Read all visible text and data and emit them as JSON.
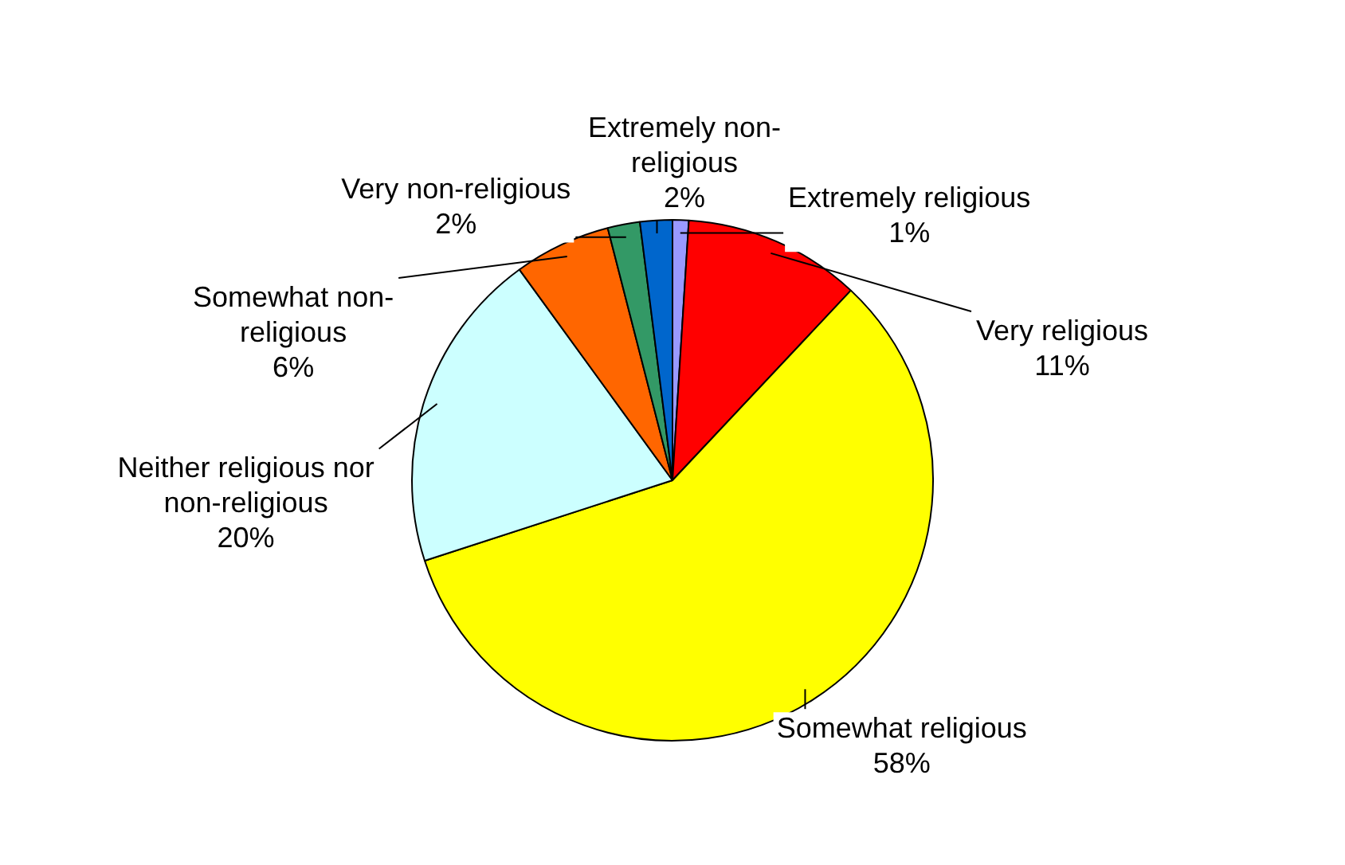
{
  "chart_data": {
    "type": "pie",
    "categories": [
      "Extremely religious",
      "Very religious",
      "Somewhat religious",
      "Neither religious nor non-religious",
      "Somewhat non-religious",
      "Very non-religious",
      "Extremely non-religious"
    ],
    "values": [
      1,
      11,
      58,
      20,
      6,
      2,
      2
    ],
    "value_labels": [
      "1%",
      "11%",
      "58%",
      "20%",
      "6%",
      "2%",
      "2%"
    ],
    "colors": [
      "#9999ff",
      "#ff0000",
      "#ffff00",
      "#ccffff",
      "#ff6600",
      "#339966",
      "#0066cc"
    ]
  }
}
